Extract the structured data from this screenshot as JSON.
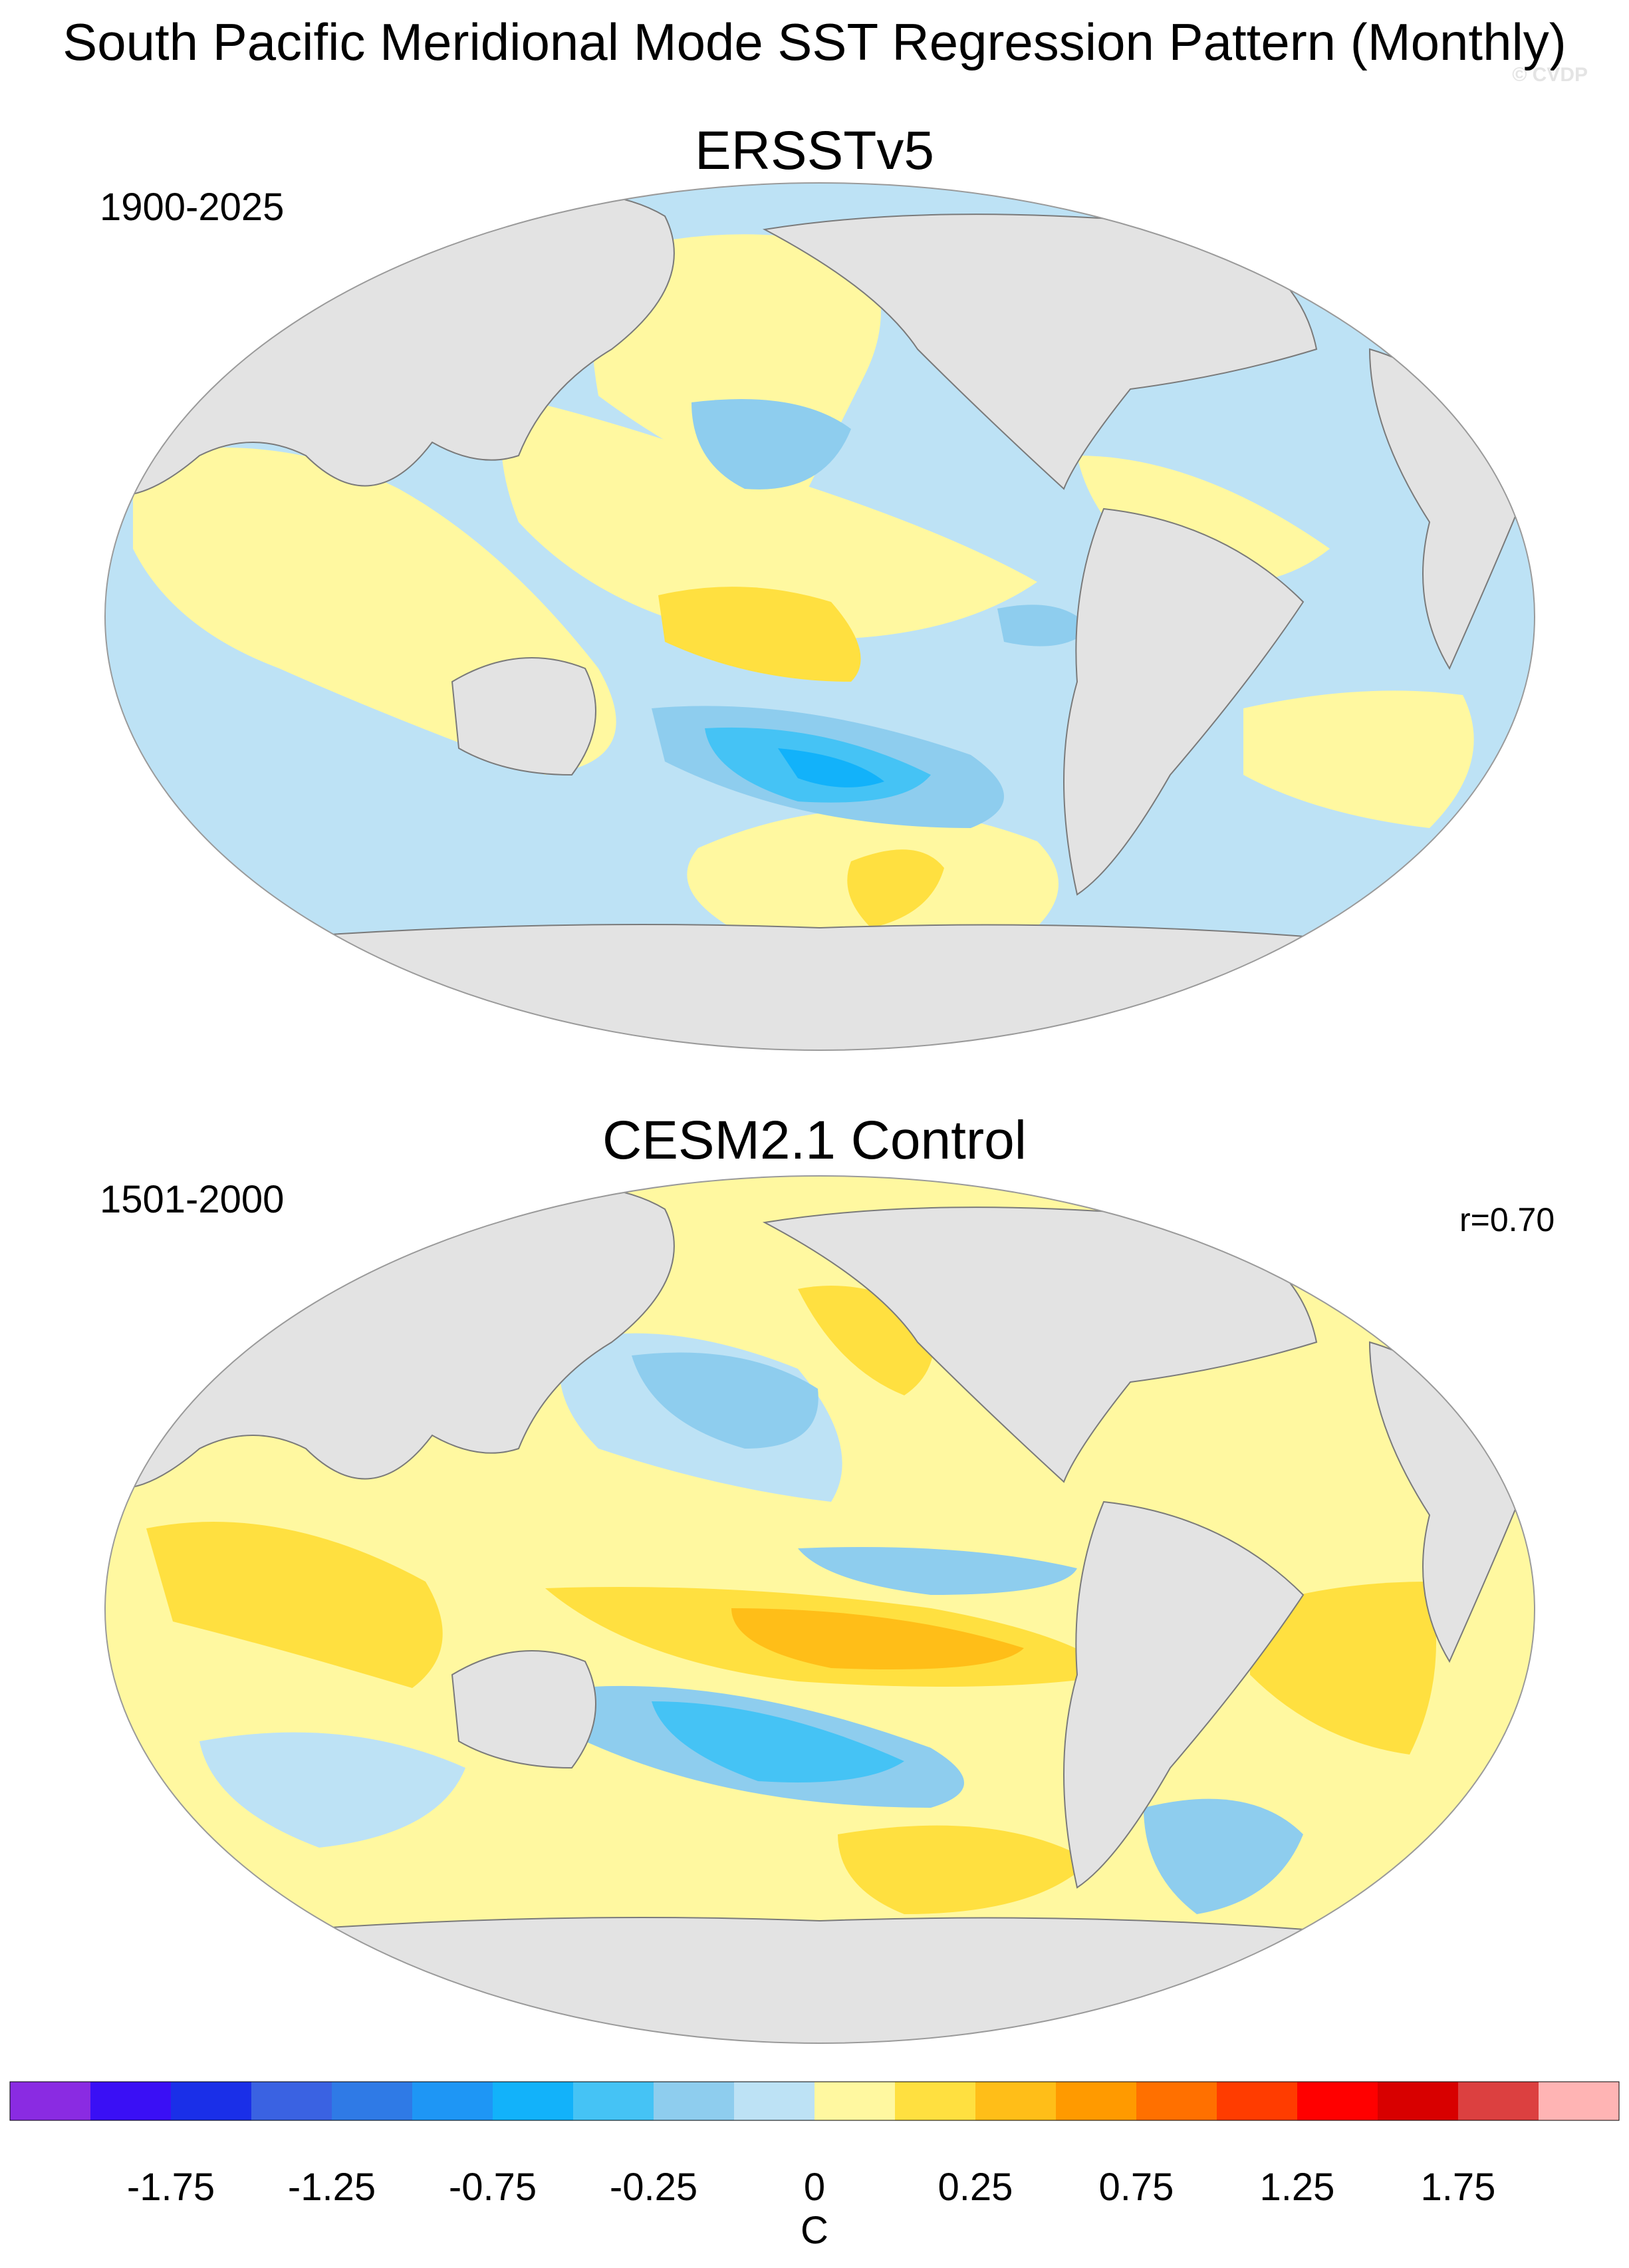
{
  "title": "South Pacific Meridional Mode SST Regression Pattern (Monthly)",
  "watermark": "© CVDP",
  "panels": [
    {
      "name": "ERSSTv5",
      "period": "1900-2025",
      "stat": ""
    },
    {
      "name": "CESM2.1 Control",
      "period": "1501-2000",
      "stat": "r=0.70"
    }
  ],
  "colorbar": {
    "unit": "C",
    "colors": [
      "#8a2be2",
      "#3a0ff5",
      "#1a2fe8",
      "#3a62e2",
      "#2f7ae6",
      "#1e96f5",
      "#12b2fa",
      "#45c3f5",
      "#8ecdee",
      "#bde2f5",
      "#fff8a0",
      "#ffe040",
      "#ffbe18",
      "#ff9a00",
      "#ff7000",
      "#ff3c00",
      "#ff0000",
      "#d80000",
      "#dc4040",
      "#ffb4b4"
    ],
    "labels": [
      "-1.75",
      "-1.25",
      "-0.75",
      "-0.25",
      "0",
      "0.25",
      "0.75",
      "1.25",
      "1.75"
    ]
  },
  "colors": {
    "land": "#e3e3e3",
    "coast": "#7a7a7a"
  }
}
